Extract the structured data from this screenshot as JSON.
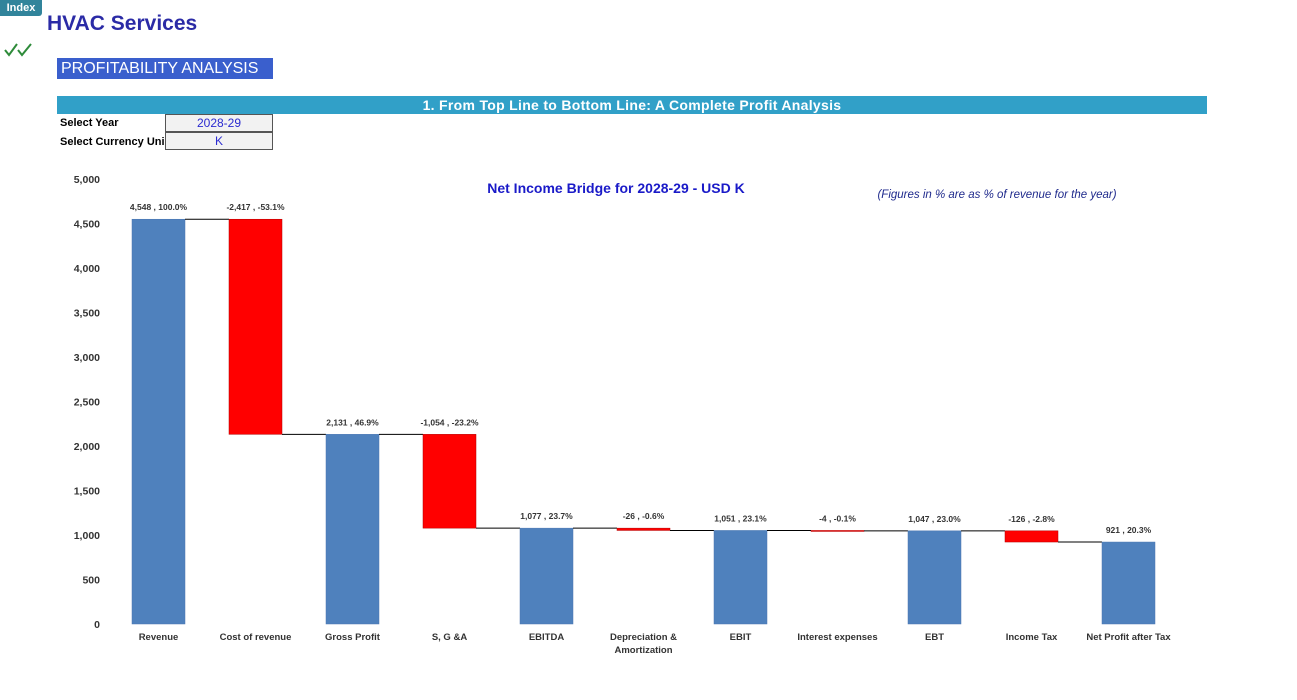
{
  "header": {
    "index_button": "Index",
    "title": "HVAC Services",
    "section": "PROFITABILITY ANALYSIS",
    "banner": "1. From Top Line to Bottom Line: A Complete Profit Analysis",
    "inputs": [
      {
        "label": "Select Year",
        "value": "2028-29"
      },
      {
        "label": "Select Currency Uni",
        "value": "K"
      }
    ]
  },
  "chart_data": {
    "type": "waterfall",
    "title": "Net Income Bridge for 2028-29 - USD K",
    "note": "(Figures in % are as % of revenue for the year)",
    "categories": [
      "Revenue",
      "Cost of revenue",
      "Gross Profit",
      "S, G &A",
      "EBITDA",
      "Depreciation & Amortization",
      "EBIT",
      "Interest expenses",
      "EBT",
      "Income Tax",
      "Net Profit after Tax"
    ],
    "values": [
      4548,
      -2417,
      2131,
      -1054,
      1077,
      -26,
      1051,
      -4,
      1047,
      -126,
      921
    ],
    "value_labels": [
      "4,548 , 100.0%",
      "-2,417 , -53.1%",
      "2,131 , 46.9%",
      "-1,054 , -23.2%",
      "1,077 , 23.7%",
      "-26 , -0.6%",
      "1,051 , 23.1%",
      "-4 , -0.1%",
      "1,047 , 23.0%",
      "-126 , -2.8%",
      "921 , 20.3%"
    ],
    "color": "#4f81bd",
    "negative_color": "#ff0000",
    "ylim": [
      0,
      5000
    ],
    "yticks": [
      0,
      500,
      {
        "value": 1000,
        "label": "1,000"
      },
      {
        "value": 1500,
        "label": "1,500"
      },
      {
        "value": 2000,
        "label": "2,000"
      },
      {
        "value": 2500,
        "label": "2,500"
      },
      {
        "value": 3000,
        "label": "3,000"
      },
      {
        "value": 3500,
        "label": "3,500"
      },
      {
        "value": 4000,
        "label": "4,000"
      },
      {
        "value": 4500,
        "label": "4,500"
      },
      {
        "value": 5000,
        "label": "5,000"
      }
    ],
    "grid": false
  }
}
